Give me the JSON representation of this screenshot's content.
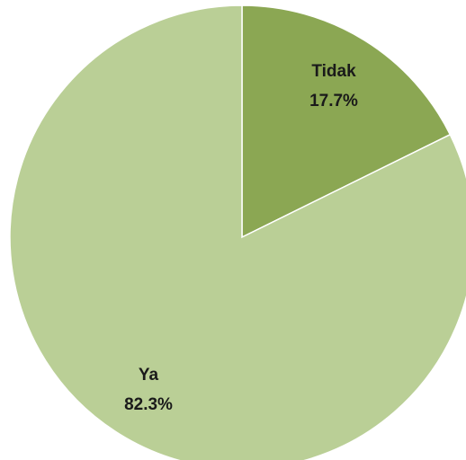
{
  "chart_data": {
    "type": "pie",
    "start_angle_deg": 0,
    "direction": "clockwise",
    "slices": [
      {
        "label": "Tidak",
        "value": 17.7,
        "display": "17.7%",
        "color": "#8ba753"
      },
      {
        "label": "Ya",
        "value": 82.3,
        "display": "82.3%",
        "color": "#bacf96"
      }
    ],
    "border_color": "#ffffff",
    "legend": "none"
  }
}
